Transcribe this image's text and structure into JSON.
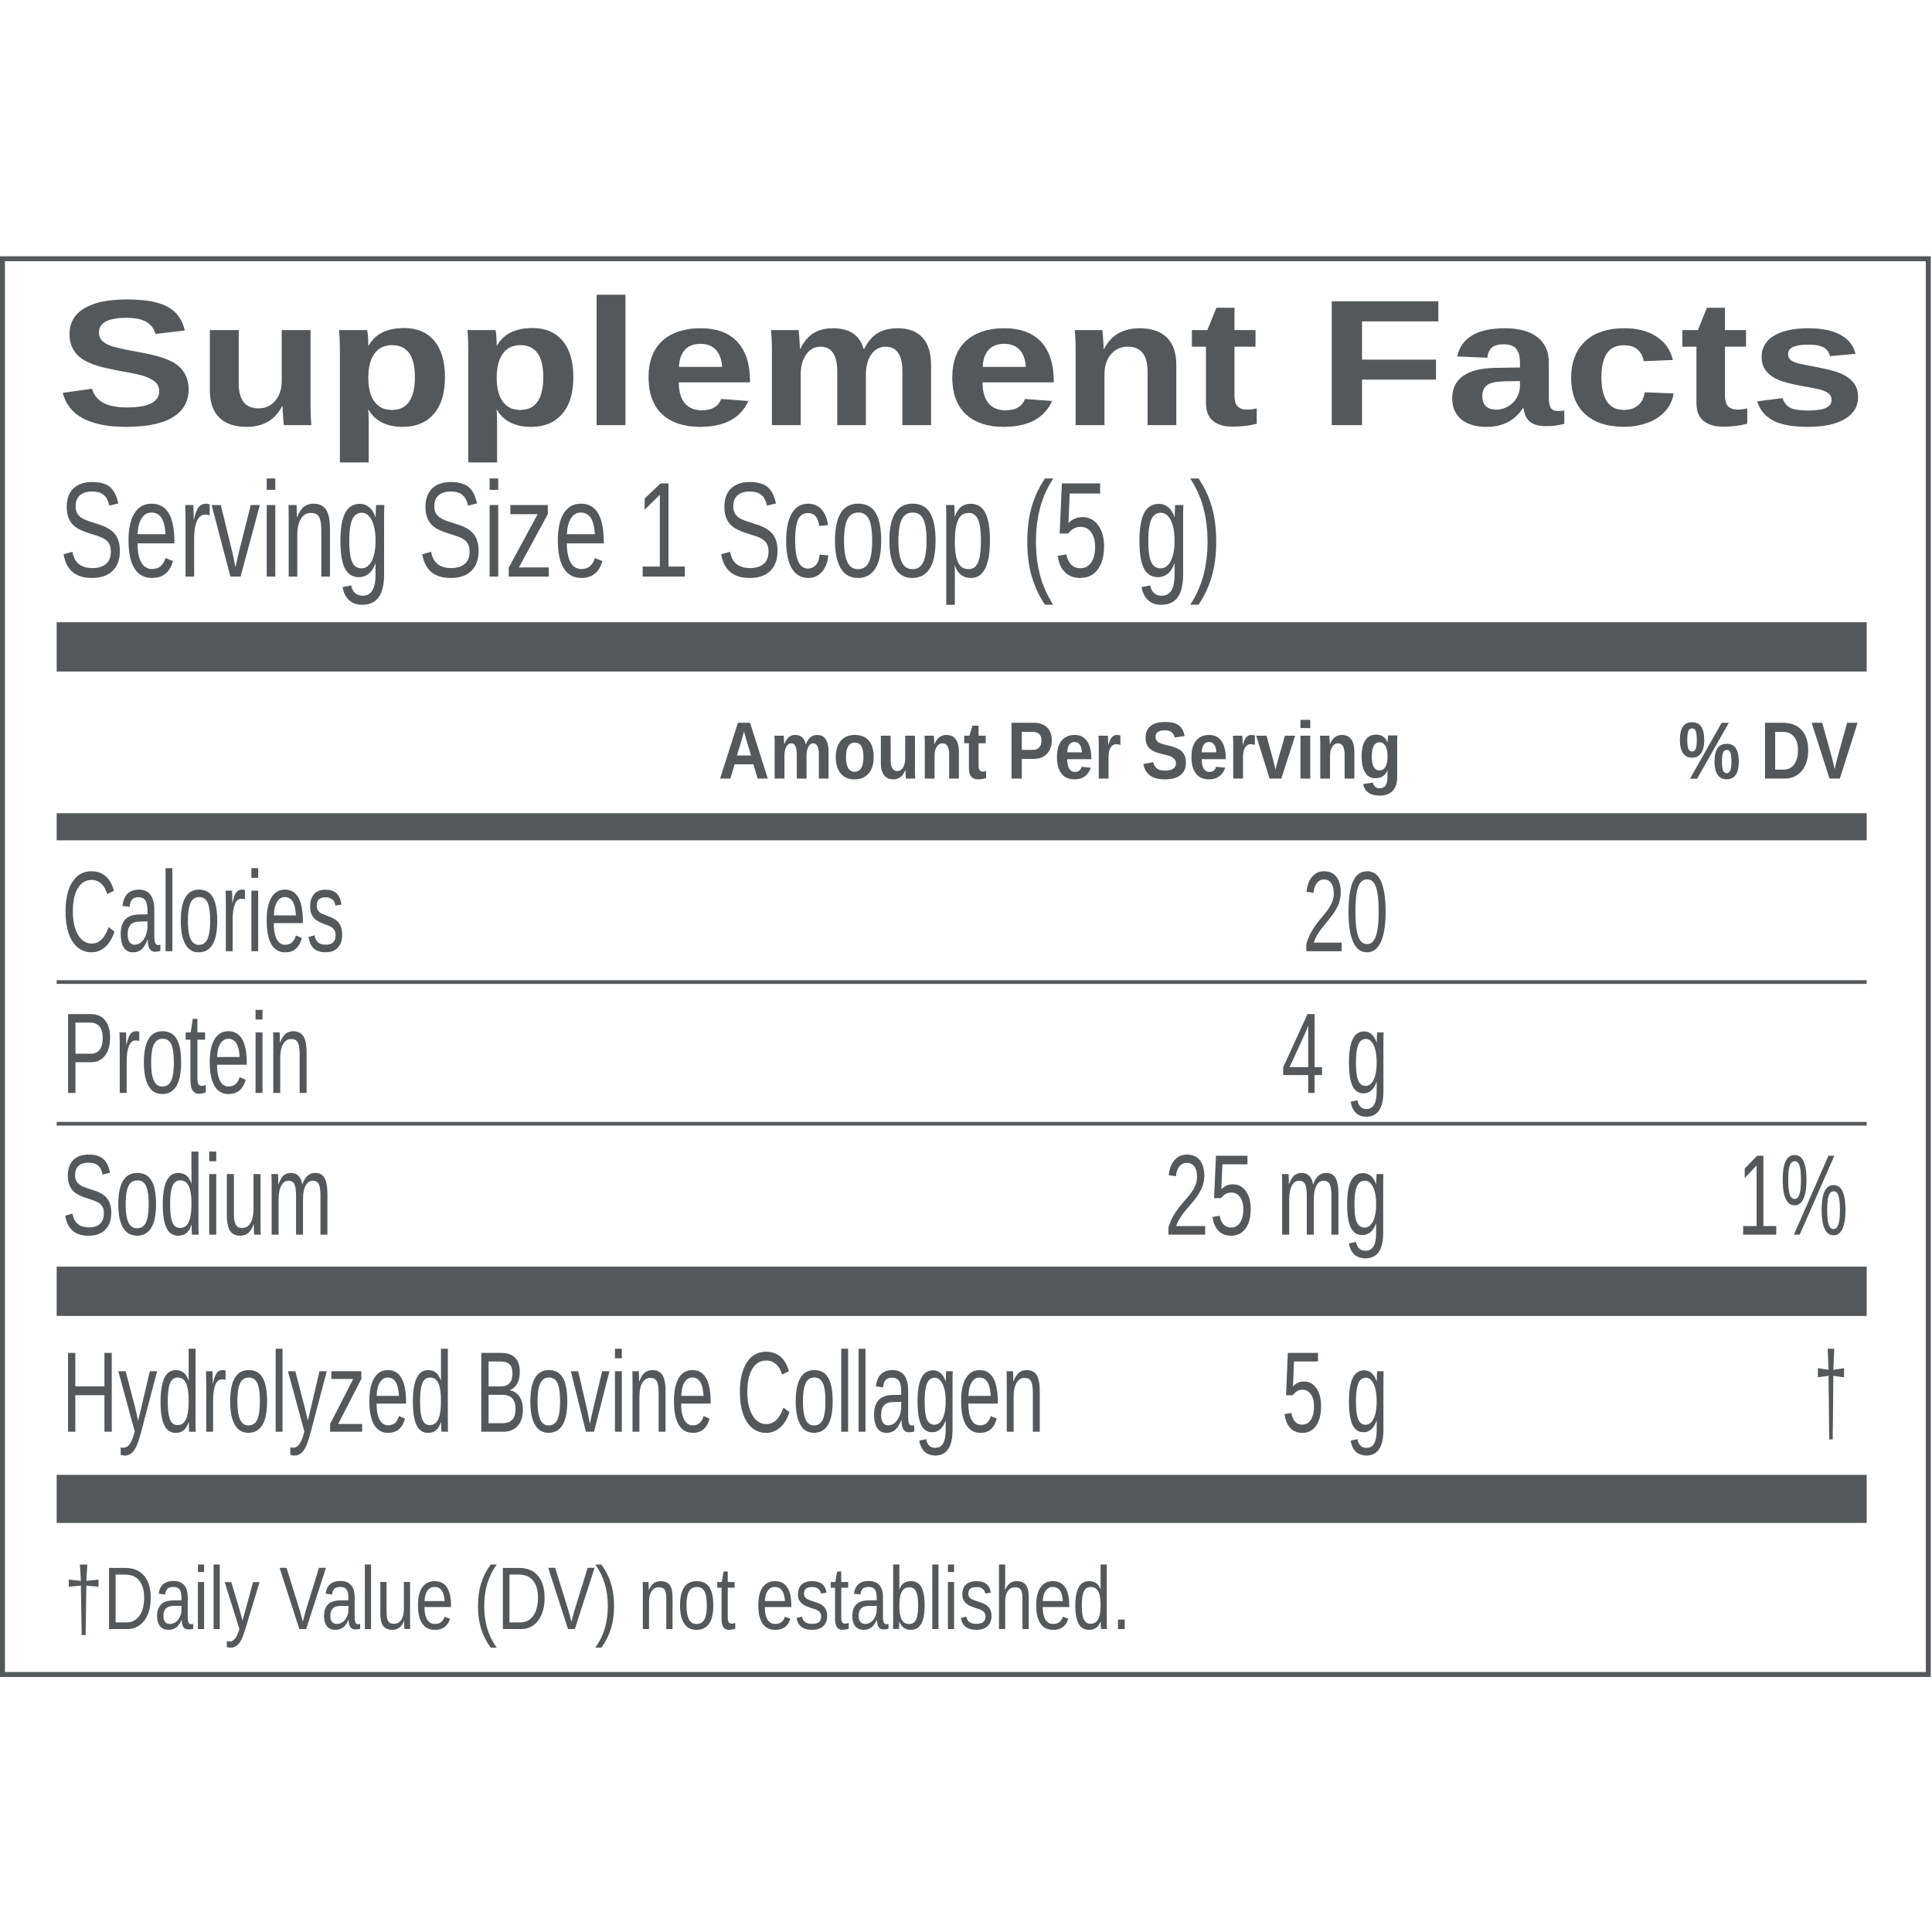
{
  "title": "Supplement Facts",
  "serving_size": "Serving Size 1 Scoop (5 g)",
  "header": {
    "amount": "Amount Per Serving",
    "dv": "% DV"
  },
  "rows": [
    {
      "name": "Calories",
      "amount": "20"
    },
    {
      "name": "Protein",
      "amount": "4 g"
    },
    {
      "name": "Sodium",
      "amount": "25 mg",
      "dv": "1%"
    },
    {
      "name": "Hydrolyzed Bovine Collagen",
      "amount": "5 g",
      "dv": "†"
    }
  ],
  "footnote": "†Daily Value (DV) not established."
}
